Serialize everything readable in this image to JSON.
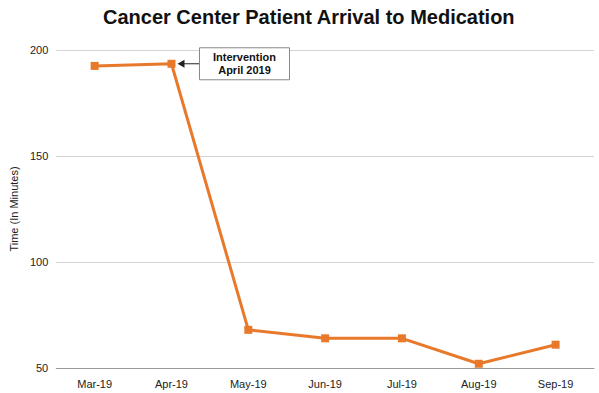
{
  "chart_data": {
    "type": "line",
    "title": "Cancer Center Patient Arrival to Medication",
    "y_label": "Time (In Minutes)",
    "categories": [
      "Mar-19",
      "Apr-19",
      "May-19",
      "Jun-19",
      "Jul-19",
      "Aug-19",
      "Sep-19"
    ],
    "values": [
      192.5,
      193.5,
      68,
      64,
      64,
      52,
      61
    ],
    "color": "#e8792b",
    "marker": "square",
    "ylim": [
      50,
      200
    ],
    "yticks": [
      50,
      100,
      150,
      200
    ],
    "grid": true,
    "annotations": [
      {
        "text": [
          "Intervention",
          "April 2019"
        ],
        "x": "Apr-19"
      }
    ]
  }
}
